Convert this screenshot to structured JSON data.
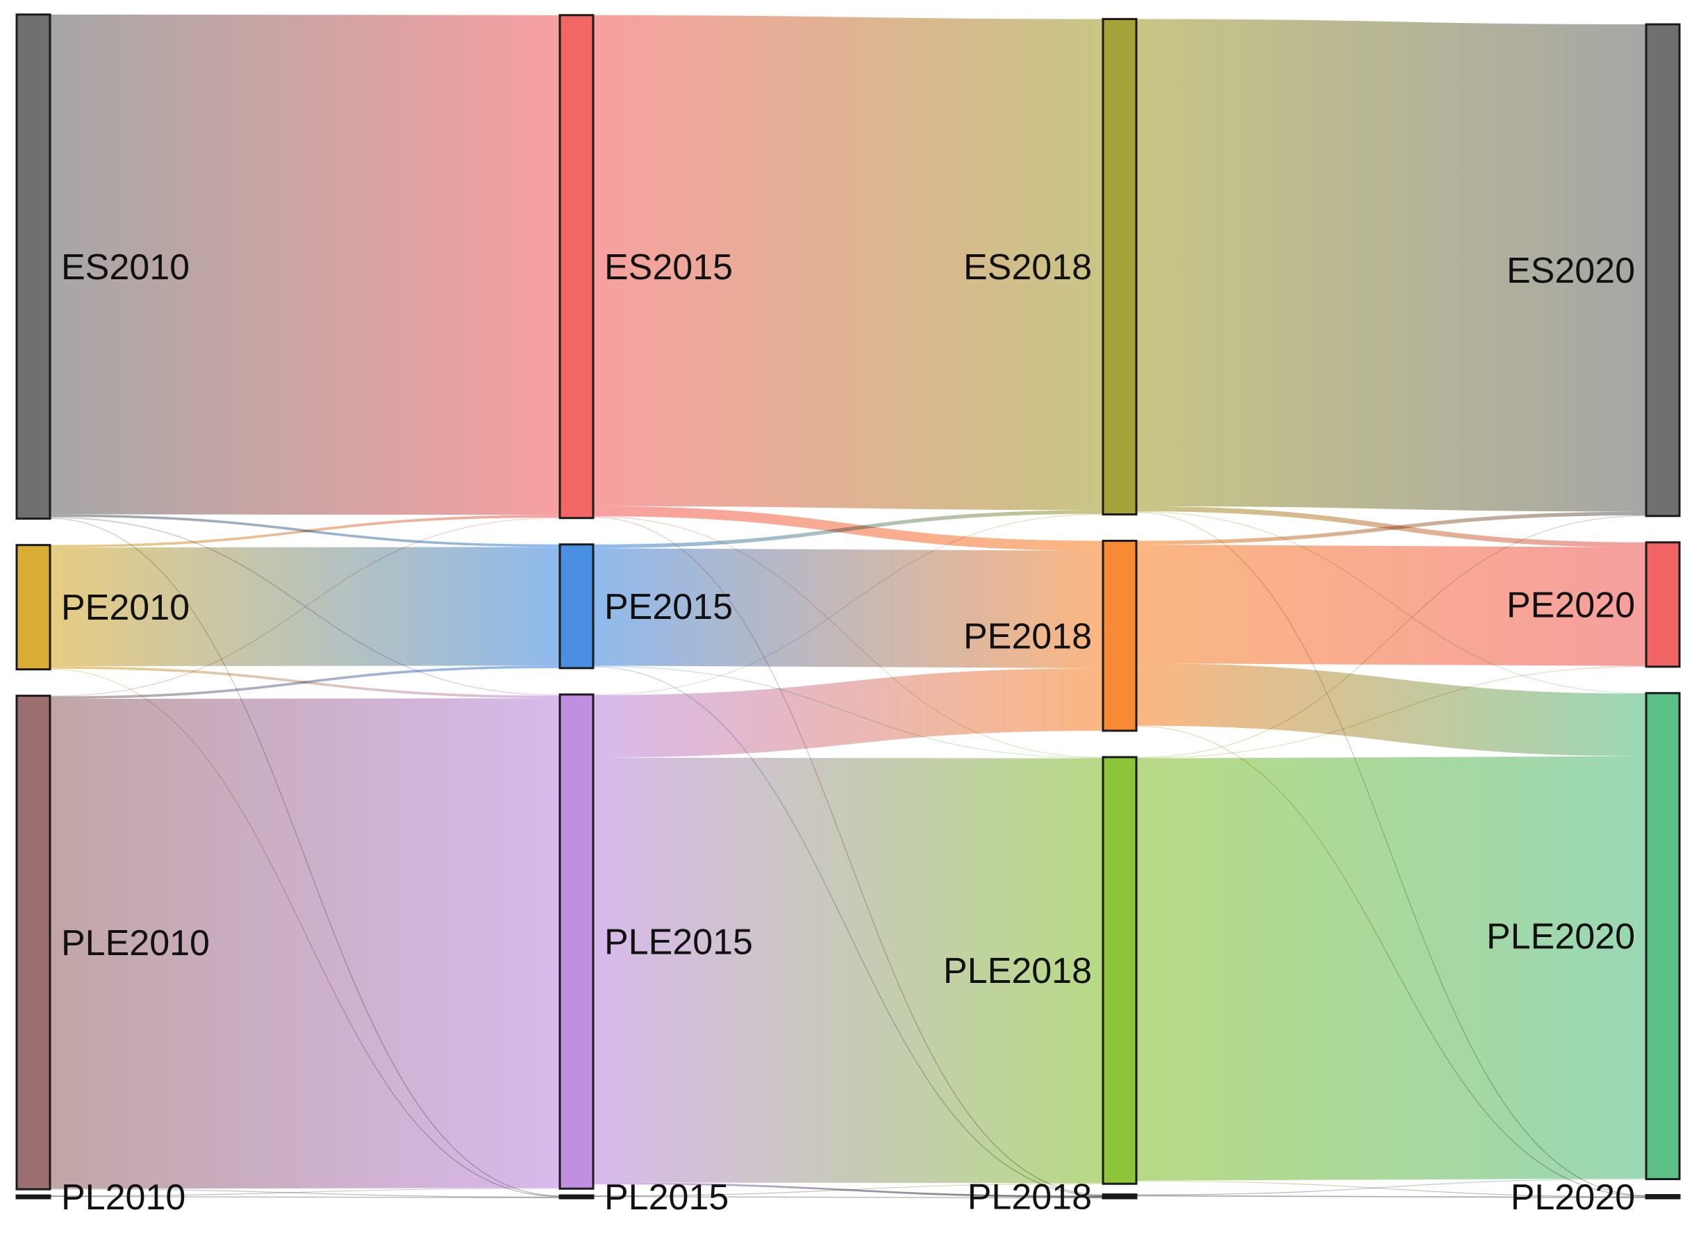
{
  "chart_data": {
    "type": "sankey",
    "title": "",
    "columns": [
      "2010",
      "2015",
      "2018",
      "2020"
    ],
    "nodes": [
      {
        "id": "ES2010",
        "label": "ES2010",
        "column": 0,
        "order": 0,
        "color": "#707070"
      },
      {
        "id": "PE2010",
        "label": "PE2010",
        "column": 0,
        "order": 1,
        "color": "#D9AE35"
      },
      {
        "id": "PLE2010",
        "label": "PLE2010",
        "column": 0,
        "order": 2,
        "color": "#9B6F6F"
      },
      {
        "id": "PL2010",
        "label": "PL2010",
        "column": 0,
        "order": 3,
        "color": "#1a1a1a"
      },
      {
        "id": "ES2015",
        "label": "ES2015",
        "column": 1,
        "order": 0,
        "color": "#F26666"
      },
      {
        "id": "PE2015",
        "label": "PE2015",
        "column": 1,
        "order": 1,
        "color": "#4A8FE2"
      },
      {
        "id": "PLE2015",
        "label": "PLE2015",
        "column": 1,
        "order": 2,
        "color": "#C08FE0"
      },
      {
        "id": "PL2015",
        "label": "PL2015",
        "column": 1,
        "order": 3,
        "color": "#1a1a1a"
      },
      {
        "id": "ES2018",
        "label": "ES2018",
        "column": 2,
        "order": 0,
        "color": "#A6A23A"
      },
      {
        "id": "PE2018",
        "label": "PE2018",
        "column": 2,
        "order": 1,
        "color": "#F98A35"
      },
      {
        "id": "PLE2018",
        "label": "PLE2018",
        "column": 2,
        "order": 2,
        "color": "#8CC43A"
      },
      {
        "id": "PL2018",
        "label": "PL2018",
        "column": 2,
        "order": 3,
        "color": "#1a1a1a"
      },
      {
        "id": "ES2020",
        "label": "ES2020",
        "column": 3,
        "order": 0,
        "color": "#707070"
      },
      {
        "id": "PE2020",
        "label": "PE2020",
        "column": 3,
        "order": 1,
        "color": "#F06464"
      },
      {
        "id": "PLE2020",
        "label": "PLE2020",
        "column": 3,
        "order": 2,
        "color": "#5CBF86"
      },
      {
        "id": "PL2020",
        "label": "PL2020",
        "column": 3,
        "order": 3,
        "color": "#1a1a1a"
      }
    ],
    "links": [
      {
        "source": "ES2010",
        "target": "ES2015",
        "value": 400
      },
      {
        "source": "ES2010",
        "target": "PE2015",
        "value": 2
      },
      {
        "source": "ES2010",
        "target": "PLE2015",
        "value": 1
      },
      {
        "source": "ES2010",
        "target": "PL2015",
        "value": 0.5
      },
      {
        "source": "PE2010",
        "target": "ES2015",
        "value": 2
      },
      {
        "source": "PE2010",
        "target": "PE2015",
        "value": 95
      },
      {
        "source": "PE2010",
        "target": "PLE2015",
        "value": 2
      },
      {
        "source": "PE2010",
        "target": "PL2015",
        "value": 0.5
      },
      {
        "source": "PLE2010",
        "target": "ES2015",
        "value": 0.5
      },
      {
        "source": "PLE2010",
        "target": "PE2015",
        "value": 2
      },
      {
        "source": "PLE2010",
        "target": "PLE2015",
        "value": 392
      },
      {
        "source": "PLE2010",
        "target": "PL2015",
        "value": 0.5
      },
      {
        "source": "PL2010",
        "target": "PLE2015",
        "value": 0.5
      },
      {
        "source": "PL2010",
        "target": "PL2015",
        "value": 0.5
      },
      {
        "source": "ES2015",
        "target": "ES2018",
        "value": 393
      },
      {
        "source": "ES2015",
        "target": "PE2018",
        "value": 8
      },
      {
        "source": "ES2015",
        "target": "PLE2018",
        "value": 0.5
      },
      {
        "source": "ES2015",
        "target": "PL2018",
        "value": 0.5
      },
      {
        "source": "PE2015",
        "target": "ES2018",
        "value": 3
      },
      {
        "source": "PE2015",
        "target": "PE2018",
        "value": 94
      },
      {
        "source": "PE2015",
        "target": "PLE2018",
        "value": 0.5
      },
      {
        "source": "PE2015",
        "target": "PL2018",
        "value": 0.5
      },
      {
        "source": "PLE2015",
        "target": "ES2018",
        "value": 0.5
      },
      {
        "source": "PLE2015",
        "target": "PE2018",
        "value": 50
      },
      {
        "source": "PLE2015",
        "target": "PLE2018",
        "value": 340
      },
      {
        "source": "PLE2015",
        "target": "PL2018",
        "value": 1.5
      },
      {
        "source": "PL2015",
        "target": "PLE2018",
        "value": 0.5
      },
      {
        "source": "PL2015",
        "target": "PL2018",
        "value": 0.5
      },
      {
        "source": "ES2018",
        "target": "ES2020",
        "value": 390
      },
      {
        "source": "ES2018",
        "target": "PE2020",
        "value": 4
      },
      {
        "source": "ES2018",
        "target": "PLE2020",
        "value": 0.5
      },
      {
        "source": "ES2018",
        "target": "PL2020",
        "value": 0.5
      },
      {
        "source": "PE2018",
        "target": "ES2020",
        "value": 3
      },
      {
        "source": "PE2018",
        "target": "PE2020",
        "value": 95
      },
      {
        "source": "PE2018",
        "target": "PLE2020",
        "value": 50
      },
      {
        "source": "PE2018",
        "target": "PL2020",
        "value": 0.5
      },
      {
        "source": "PLE2018",
        "target": "ES2020",
        "value": 0.5
      },
      {
        "source": "PLE2018",
        "target": "PE2020",
        "value": 0.5
      },
      {
        "source": "PLE2018",
        "target": "PLE2020",
        "value": 338
      },
      {
        "source": "PLE2018",
        "target": "PL2020",
        "value": 0.5
      },
      {
        "source": "PL2018",
        "target": "PLE2020",
        "value": 0.5
      },
      {
        "source": "PL2018",
        "target": "PL2020",
        "value": 1
      }
    ]
  }
}
